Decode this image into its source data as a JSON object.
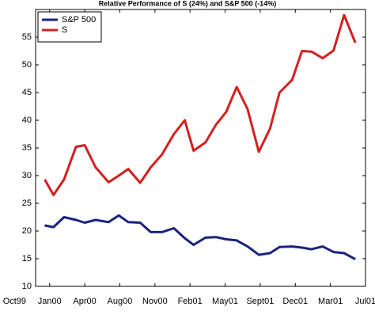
{
  "chart_data": {
    "type": "line",
    "title": "Relative Performance of S (24%) and S&P 500 (-14%)",
    "x": [
      0.86,
      1.11,
      1.41,
      1.75,
      2.0,
      2.31,
      2.68,
      2.97,
      3.24,
      3.58,
      3.88,
      4.2,
      4.54,
      4.85,
      5.1,
      5.44,
      5.74,
      6.03,
      6.33,
      6.64,
      6.96,
      7.28,
      7.55,
      7.91,
      8.19,
      8.46,
      8.78,
      9.09,
      9.39,
      9.71
    ],
    "series": [
      {
        "name": "S&P 500",
        "color": "#1a237e",
        "values": [
          21,
          20.7,
          22.5,
          22,
          21.5,
          22,
          21.6,
          22.8,
          21.6,
          21.5,
          19.8,
          19.8,
          20.5,
          18.7,
          17.5,
          18.8,
          18.9,
          18.5,
          18.3,
          17.2,
          15.7,
          16,
          17.1,
          17.2,
          17,
          16.7,
          17.2,
          16.2,
          16,
          14.9
        ]
      },
      {
        "name": "S",
        "color": "#d32020",
        "values": [
          29.3,
          26.5,
          29.3,
          35.2,
          35.5,
          31.5,
          28.8,
          30,
          31.2,
          28.7,
          31.5,
          33.8,
          37.5,
          40,
          34.5,
          36,
          39.2,
          41.5,
          46,
          42,
          34.3,
          38.5,
          45,
          47.3,
          52.5,
          52.4,
          51.2,
          52.6,
          59,
          54
        ]
      }
    ],
    "xlim": [
      0.6,
      10
    ],
    "xticks": [
      {
        "value": 0,
        "label": "Oct99"
      },
      {
        "value": 1,
        "label": "Jan00"
      },
      {
        "value": 2,
        "label": "Apr00"
      },
      {
        "value": 3,
        "label": "Aug00"
      },
      {
        "value": 4,
        "label": "Nov00"
      },
      {
        "value": 5,
        "label": "Feb01"
      },
      {
        "value": 6,
        "label": "May01"
      },
      {
        "value": 7,
        "label": "Sept01"
      },
      {
        "value": 8,
        "label": "Dec01"
      },
      {
        "value": 9,
        "label": "Mar01"
      },
      {
        "value": 10,
        "label": "Jul01"
      }
    ],
    "ylim": [
      10,
      60
    ],
    "yticks": [
      10,
      15,
      20,
      25,
      30,
      35,
      40,
      45,
      50,
      55
    ],
    "grid": false,
    "legend": "upper left"
  }
}
